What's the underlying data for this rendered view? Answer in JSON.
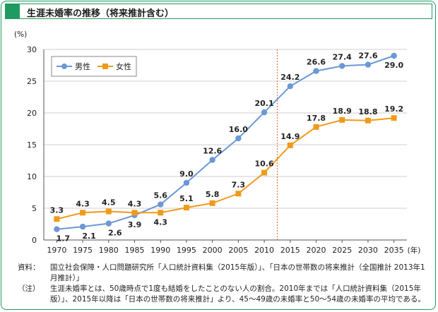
{
  "title": "生涯未婚率の推移（将来推計含む）",
  "chart_data": {
    "type": "line",
    "x": [
      1970,
      1975,
      1980,
      1985,
      1990,
      1995,
      2000,
      2005,
      2010,
      2015,
      2020,
      2025,
      2030,
      2035
    ],
    "x_tick_labels": [
      "1970",
      "1975",
      "1980",
      "1985",
      "1990",
      "1995",
      "2000",
      "2005",
      "2010",
      "2015",
      "2020",
      "2025",
      "2030",
      "2035"
    ],
    "x_unit": "(年)",
    "y_unit": "(%)",
    "ylim": [
      0,
      30
    ],
    "y_ticks": [
      0,
      5,
      10,
      15,
      20,
      25,
      30
    ],
    "grid": true,
    "legend_position": "top-left",
    "projection_start": 2010,
    "series": [
      {
        "name": "男性",
        "color": "#6b98d6",
        "values": [
          1.7,
          2.1,
          2.6,
          3.9,
          5.6,
          9.0,
          12.6,
          16.0,
          20.1,
          24.2,
          26.6,
          27.4,
          27.6,
          29.0
        ],
        "labels": [
          "1.7",
          "2.1",
          "2.6",
          "3.9",
          "5.6",
          "9.0",
          "12.6",
          "16.0",
          "20.1",
          "24.2",
          "26.6",
          "27.4",
          "27.6",
          "29.0"
        ]
      },
      {
        "name": "女性",
        "color": "#f09a1a",
        "values": [
          3.3,
          4.3,
          4.5,
          4.3,
          4.3,
          5.1,
          5.8,
          7.3,
          10.6,
          14.9,
          17.8,
          18.9,
          18.8,
          19.2
        ],
        "labels": [
          "3.3",
          "4.3",
          "4.5",
          "4.3",
          "4.3",
          "5.1",
          "5.8",
          "7.3",
          "10.6",
          "14.9",
          "17.8",
          "18.9",
          "18.8",
          "19.2"
        ]
      }
    ]
  },
  "notes": {
    "source_label": "資料：",
    "source_text": "国立社会保障・人口問題研究所「人口統計資料集（2015年版）」、「日本の世帯数の将来推計（全国推計 2013年1月推計）」",
    "note_label": "（注）",
    "note_text": "生涯未婚率とは、50歳時点で1度も結婚をしたことのない人の割合。2010年までは「人口統計資料集（2015年版）」、2015年以降は「日本の世帯数の将来推計」より、45〜49歳の未婚率と50〜54歳の未婚率の平均である。"
  }
}
